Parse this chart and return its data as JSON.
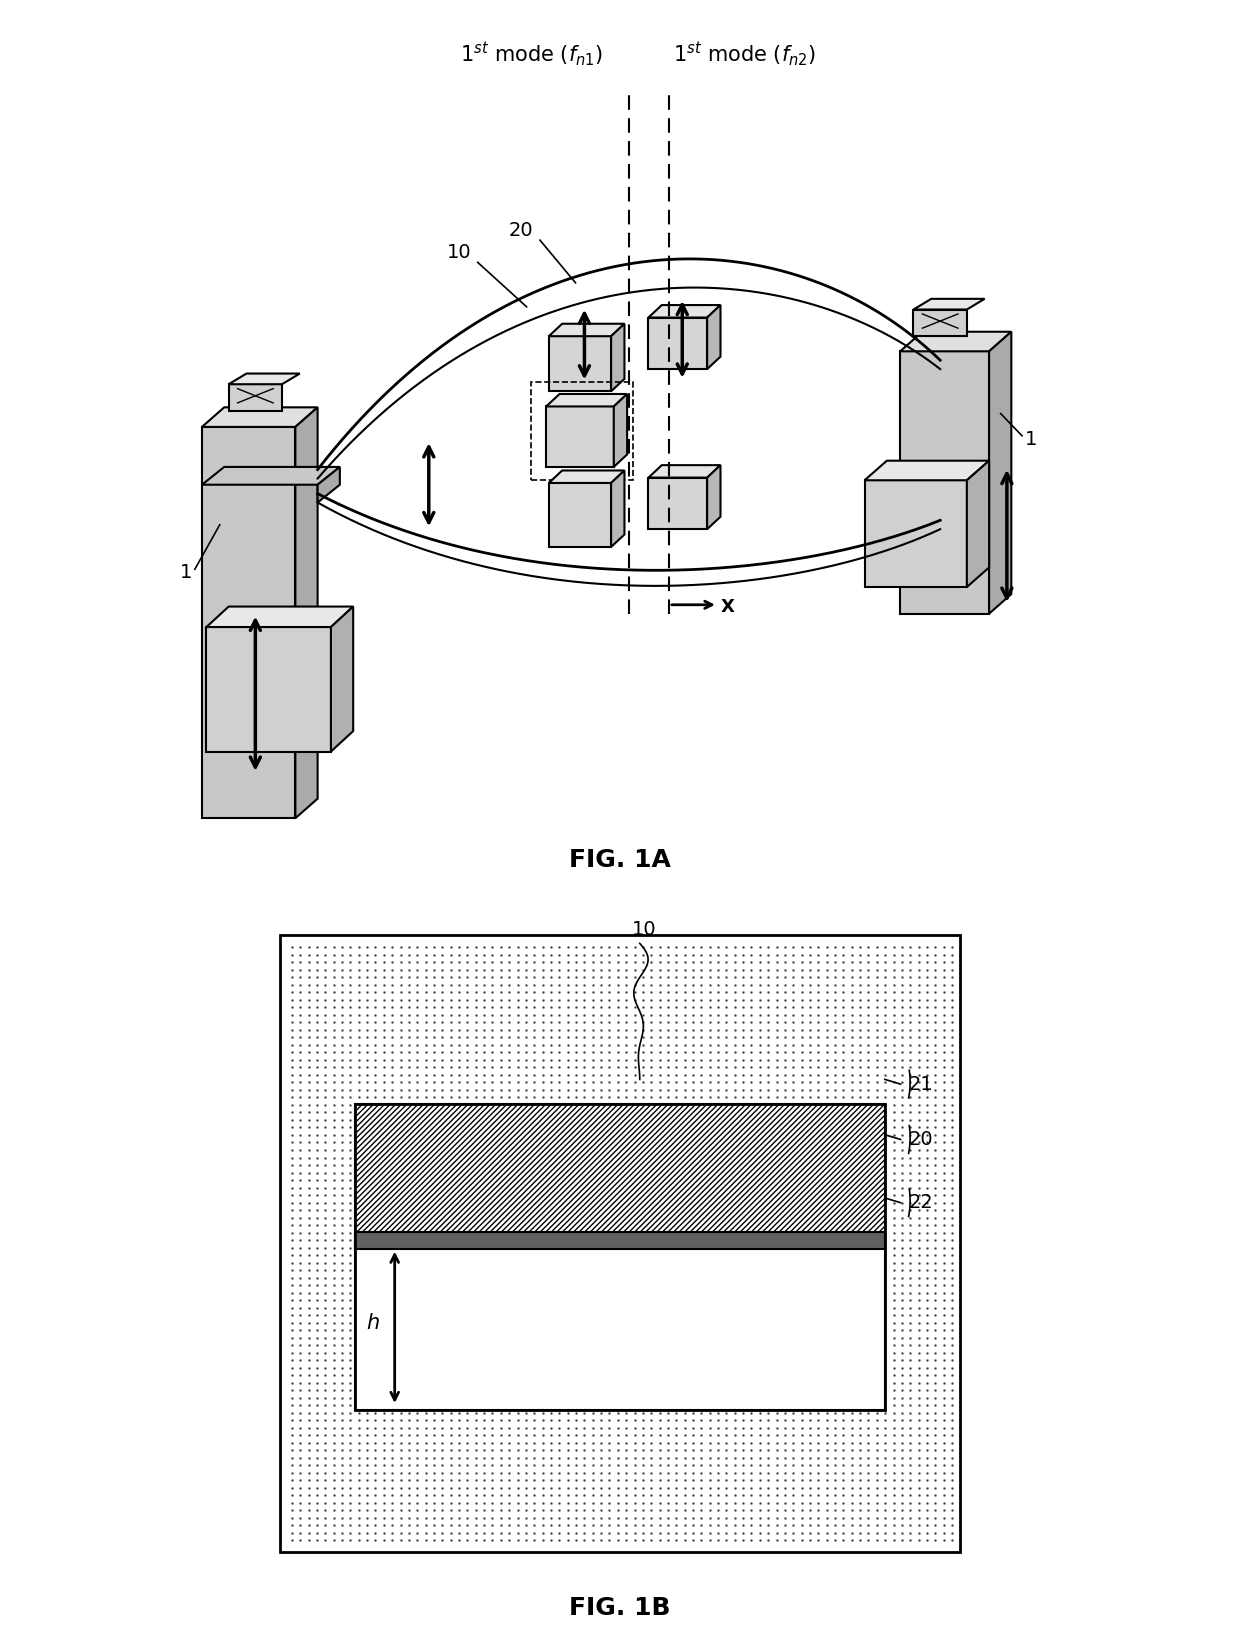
{
  "fig_width": 12.4,
  "fig_height": 16.47,
  "dpi": 100,
  "bg_color": "#ffffff",
  "fig1a_label": "FIG. 1A",
  "fig1b_label": "FIG. 1B",
  "label_fontsize": 18,
  "annotation_fontsize": 14,
  "label_1": "1",
  "label_10": "10",
  "label_20": "20",
  "label_21": "21",
  "label_22": "22",
  "label_X": "X",
  "label_h": "h",
  "mode1_text": "1$^{st}$ mode ($f_{n1}$)",
  "mode2_text": "1$^{st}$ mode ($f_{n2}$)"
}
